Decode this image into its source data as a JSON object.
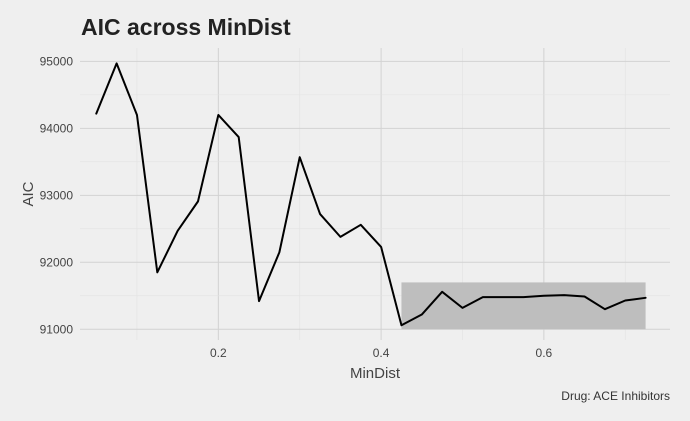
{
  "chart_data": {
    "type": "line",
    "title": "AIC across MinDist",
    "xlabel": "MinDist",
    "ylabel": "AIC",
    "caption": "Drug: ACE Inhibitors",
    "xlim": [
      0.03,
      0.755
    ],
    "ylim": [
      90840,
      95200
    ],
    "x_ticks": [
      0.2,
      0.4,
      0.6
    ],
    "x_tick_labels": [
      "0.2",
      "0.4",
      "0.6"
    ],
    "y_ticks": [
      91000,
      92000,
      93000,
      94000,
      95000
    ],
    "y_tick_labels": [
      "91000",
      "92000",
      "93000",
      "94000",
      "95000"
    ],
    "grid": true,
    "highlight": {
      "x": [
        0.425,
        0.725
      ],
      "y": [
        91000,
        91700
      ],
      "color": "#bebebe"
    },
    "line_color": "#000000",
    "x": [
      0.05,
      0.075,
      0.1,
      0.125,
      0.15,
      0.175,
      0.2,
      0.225,
      0.25,
      0.275,
      0.3,
      0.325,
      0.35,
      0.375,
      0.4,
      0.425,
      0.45,
      0.475,
      0.5,
      0.525,
      0.55,
      0.575,
      0.6,
      0.625,
      0.65,
      0.675,
      0.7,
      0.725
    ],
    "y": [
      94220,
      94970,
      94200,
      91850,
      92470,
      92910,
      94200,
      93870,
      91420,
      92150,
      93570,
      92720,
      92380,
      92560,
      92230,
      91060,
      91220,
      91560,
      91320,
      91480,
      91480,
      91480,
      91500,
      91510,
      91490,
      91300,
      91430,
      91470
    ]
  }
}
